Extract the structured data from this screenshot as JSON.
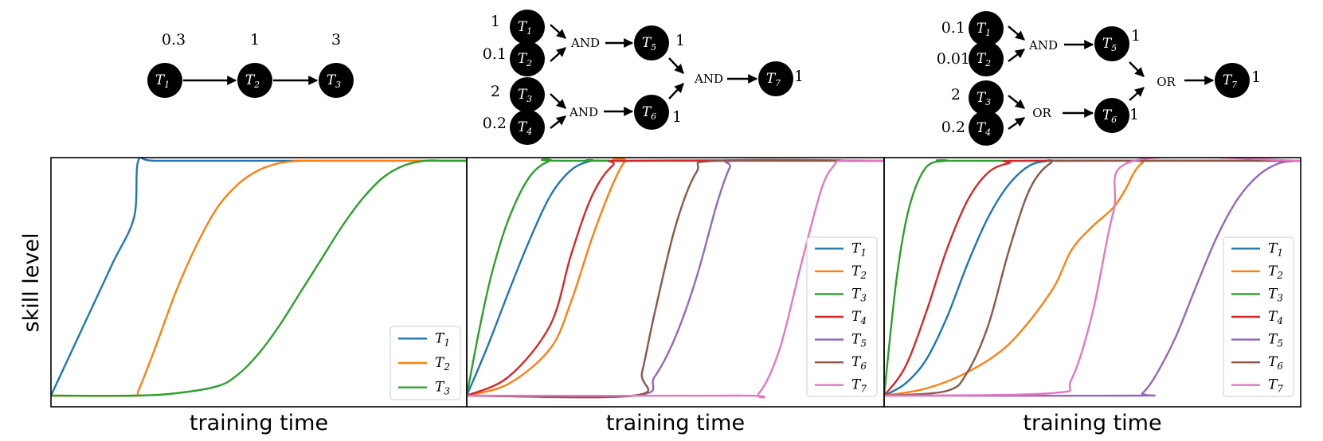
{
  "colors": {
    "T1": "#1f77b4",
    "T2": "#ff7f0e",
    "T3": "#2ca02c",
    "T4": "#d62728",
    "T5": "#9467bd",
    "T6": "#8c564b",
    "T7": "#e377c2"
  },
  "diagrams": [
    {
      "nodes": [
        {
          "id": "T1",
          "base": "T",
          "sub": "1",
          "weight": "0.3"
        },
        {
          "id": "T2",
          "base": "T",
          "sub": "2",
          "weight": "1"
        },
        {
          "id": "T3",
          "base": "T",
          "sub": "3",
          "weight": "3"
        }
      ]
    },
    {
      "nodes": [
        {
          "id": "T1",
          "base": "T",
          "sub": "1",
          "weight": "1"
        },
        {
          "id": "T2",
          "base": "T",
          "sub": "2",
          "weight": "0.1"
        },
        {
          "id": "T3",
          "base": "T",
          "sub": "3",
          "weight": "2"
        },
        {
          "id": "T4",
          "base": "T",
          "sub": "4",
          "weight": "0.2"
        },
        {
          "id": "T5",
          "base": "T",
          "sub": "5",
          "weight": "1"
        },
        {
          "id": "T6",
          "base": "T",
          "sub": "6",
          "weight": "1"
        },
        {
          "id": "T7",
          "base": "T",
          "sub": "7",
          "weight": "1"
        }
      ],
      "gates": [
        "AND",
        "AND",
        "AND"
      ]
    },
    {
      "nodes": [
        {
          "id": "T1",
          "base": "T",
          "sub": "1",
          "weight": "0.1"
        },
        {
          "id": "T2",
          "base": "T",
          "sub": "2",
          "weight": "0.01"
        },
        {
          "id": "T3",
          "base": "T",
          "sub": "3",
          "weight": "2"
        },
        {
          "id": "T4",
          "base": "T",
          "sub": "4",
          "weight": "0.2"
        },
        {
          "id": "T5",
          "base": "T",
          "sub": "5",
          "weight": "1"
        },
        {
          "id": "T6",
          "base": "T",
          "sub": "6",
          "weight": "1"
        },
        {
          "id": "T7",
          "base": "T",
          "sub": "7",
          "weight": "1"
        }
      ],
      "gates": [
        "AND",
        "OR",
        "OR"
      ]
    }
  ],
  "chart_data": [
    {
      "type": "line",
      "xlabel": "training time",
      "ylabel": "skill level",
      "xlim": [
        0,
        100
      ],
      "ylim": [
        0,
        1.05
      ],
      "grid": false,
      "legend_position": "bottom-right",
      "series": [
        {
          "name": "T1",
          "x": [
            0,
            5,
            10,
            15,
            20,
            21,
            25,
            50,
            100
          ],
          "y": [
            0,
            0.19,
            0.38,
            0.57,
            0.76,
            1.0,
            1.0,
            1.0,
            1.0
          ]
        },
        {
          "name": "T2",
          "x": [
            0,
            20,
            21,
            25,
            30,
            35,
            40,
            45,
            50,
            55,
            60,
            65,
            100
          ],
          "y": [
            0,
            0,
            0.02,
            0.2,
            0.44,
            0.64,
            0.8,
            0.9,
            0.96,
            0.99,
            1.0,
            1.0,
            1.0
          ]
        },
        {
          "name": "T3",
          "x": [
            0,
            20,
            30,
            40,
            45,
            50,
            55,
            60,
            65,
            70,
            75,
            80,
            85,
            90,
            95,
            100
          ],
          "y": [
            0,
            0,
            0.01,
            0.04,
            0.09,
            0.18,
            0.3,
            0.44,
            0.58,
            0.72,
            0.84,
            0.93,
            0.98,
            1.0,
            1.0,
            1.0
          ]
        }
      ]
    },
    {
      "type": "line",
      "xlabel": "training time",
      "ylabel": "",
      "xlim": [
        0,
        100
      ],
      "ylim": [
        0,
        1.05
      ],
      "grid": false,
      "legend_position": "center-right",
      "series": [
        {
          "name": "T1",
          "x": [
            0,
            5,
            10,
            15,
            20,
            25,
            30,
            35,
            100
          ],
          "y": [
            0,
            0.21,
            0.44,
            0.66,
            0.85,
            0.96,
            1.0,
            1.0,
            1.0
          ]
        },
        {
          "name": "T2",
          "x": [
            0,
            10,
            20,
            25,
            30,
            35,
            38,
            40,
            100
          ],
          "y": [
            0,
            0.05,
            0.2,
            0.4,
            0.67,
            0.9,
            1.0,
            1.0,
            1.0
          ]
        },
        {
          "name": "T3",
          "x": [
            0,
            3,
            6,
            10,
            15,
            20,
            25,
            100
          ],
          "y": [
            0,
            0.28,
            0.52,
            0.75,
            0.93,
            1.0,
            1.0,
            1.0
          ]
        },
        {
          "name": "T4",
          "x": [
            0,
            10,
            20,
            25,
            30,
            35,
            40,
            100
          ],
          "y": [
            0,
            0.08,
            0.3,
            0.6,
            0.85,
            0.98,
            1.0,
            1.0
          ]
        },
        {
          "name": "T5",
          "x": [
            0,
            40,
            45,
            50,
            55,
            60,
            63,
            65,
            100
          ],
          "y": [
            0,
            0,
            0.08,
            0.25,
            0.5,
            0.82,
            0.97,
            1.0,
            1.0
          ]
        },
        {
          "name": "T6",
          "x": [
            0,
            40,
            42,
            45,
            50,
            55,
            60,
            100
          ],
          "y": [
            0,
            0,
            0.1,
            0.35,
            0.72,
            0.95,
            1.0,
            1.0
          ]
        },
        {
          "name": "T7",
          "x": [
            0,
            65,
            70,
            75,
            80,
            85,
            88,
            90,
            100
          ],
          "y": [
            0,
            0,
            0.01,
            0.2,
            0.55,
            0.88,
            0.98,
            1.0,
            1.0
          ]
        }
      ]
    },
    {
      "type": "line",
      "xlabel": "training time",
      "ylabel": "",
      "xlim": [
        0,
        100
      ],
      "ylim": [
        0,
        1.05
      ],
      "grid": false,
      "legend_position": "center-right",
      "series": [
        {
          "name": "T1",
          "x": [
            0,
            5,
            10,
            15,
            20,
            25,
            30,
            35,
            40,
            45,
            100
          ],
          "y": [
            0,
            0.05,
            0.15,
            0.33,
            0.56,
            0.76,
            0.9,
            0.98,
            1.0,
            1.0,
            1.0
          ]
        },
        {
          "name": "T2",
          "x": [
            0,
            10,
            20,
            30,
            40,
            45,
            50,
            55,
            58,
            60,
            62,
            65,
            100
          ],
          "y": [
            0,
            0.03,
            0.1,
            0.22,
            0.44,
            0.62,
            0.72,
            0.8,
            0.88,
            0.95,
            0.99,
            1.0,
            1.0
          ]
        },
        {
          "name": "T3",
          "x": [
            0,
            3,
            6,
            10,
            15,
            20,
            100
          ],
          "y": [
            0,
            0.5,
            0.8,
            0.97,
            1.0,
            1.0,
            1.0
          ]
        },
        {
          "name": "T4",
          "x": [
            0,
            5,
            10,
            15,
            20,
            25,
            30,
            35,
            100
          ],
          "y": [
            0,
            0.12,
            0.35,
            0.62,
            0.83,
            0.95,
            0.99,
            1.0,
            1.0
          ]
        },
        {
          "name": "T5",
          "x": [
            0,
            60,
            62,
            65,
            70,
            75,
            80,
            85,
            90,
            95,
            100
          ],
          "y": [
            0,
            0,
            0.01,
            0.08,
            0.25,
            0.47,
            0.68,
            0.84,
            0.94,
            0.99,
            1.0
          ]
        },
        {
          "name": "T6",
          "x": [
            0,
            15,
            20,
            25,
            30,
            35,
            40,
            45,
            100
          ],
          "y": [
            0,
            0.02,
            0.1,
            0.3,
            0.62,
            0.88,
            0.99,
            1.0,
            1.0
          ]
        },
        {
          "name": "T7",
          "x": [
            0,
            40,
            45,
            50,
            55,
            60,
            100
          ],
          "y": [
            0,
            0.01,
            0.07,
            0.35,
            0.78,
            1.0,
            1.0
          ]
        }
      ]
    }
  ]
}
